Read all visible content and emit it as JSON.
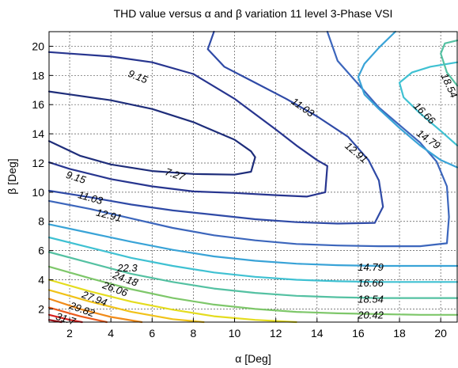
{
  "chart_data": {
    "type": "contour",
    "title": "THD value versus α and β variation 11 level 3-Phase VSI",
    "xlabel": "α [Deg]",
    "ylabel": "β [Deg]",
    "xlim": [
      1,
      20.8
    ],
    "ylim": [
      1.1,
      21
    ],
    "xticks": [
      2,
      4,
      6,
      8,
      10,
      12,
      14,
      16,
      18,
      20
    ],
    "yticks": [
      2,
      4,
      6,
      8,
      10,
      12,
      14,
      16,
      18,
      20
    ],
    "grid": true,
    "levels": [
      {
        "value": 7.27,
        "label": "7.27",
        "color": "#1e2d7a"
      },
      {
        "value": 9.15,
        "label": "9.15",
        "color": "#27358f"
      },
      {
        "value": 11.03,
        "label": "11.03",
        "color": "#2f4aa6"
      },
      {
        "value": 12.91,
        "label": "12.91",
        "color": "#3c66bc"
      },
      {
        "value": 14.79,
        "label": "14.79",
        "color": "#39a3d7"
      },
      {
        "value": 16.66,
        "label": "16.66",
        "color": "#3fc1d2"
      },
      {
        "value": 18.54,
        "label": "18.54",
        "color": "#54c1a2"
      },
      {
        "value": 20.42,
        "label": "20.42",
        "color": "#7ec76a"
      },
      {
        "value": 22.3,
        "label": "22.3",
        "color": "#e4dc1e"
      },
      {
        "value": 24.18,
        "label": "24.18",
        "color": "#f0c219"
      },
      {
        "value": 26.06,
        "label": "26.06",
        "color": "#f08b1a"
      },
      {
        "value": 27.94,
        "label": "27.94",
        "color": "#ea5a1c"
      },
      {
        "value": 29.82,
        "label": "29.82",
        "color": "#d7201f"
      },
      {
        "value": 31.7,
        "label": "31.7",
        "color": "#9c0f17"
      }
    ],
    "contours": [
      {
        "level": "7.27",
        "points": [
          [
            1,
            13.5
          ],
          [
            2.5,
            12.5
          ],
          [
            4,
            11.9
          ],
          [
            6,
            11.45
          ],
          [
            8,
            11.25
          ],
          [
            10,
            11.2
          ],
          [
            10.8,
            11.4
          ],
          [
            11,
            12.4
          ],
          [
            10.8,
            12.8
          ],
          [
            10,
            13.6
          ],
          [
            8,
            14.8
          ],
          [
            6,
            15.7
          ],
          [
            4,
            16.3
          ],
          [
            2,
            16.7
          ],
          [
            1,
            16.9
          ]
        ]
      },
      {
        "level": "9.15",
        "points": [
          [
            1,
            12.05
          ],
          [
            2,
            11.6
          ],
          [
            4,
            10.9
          ],
          [
            6,
            10.4
          ],
          [
            8,
            10.05
          ],
          [
            10,
            9.95
          ],
          [
            12,
            9.8
          ],
          [
            13.5,
            9.7
          ],
          [
            14.4,
            10
          ],
          [
            14.5,
            11.8
          ],
          [
            14,
            12.2
          ],
          [
            13,
            13.2
          ],
          [
            12,
            14.3
          ],
          [
            10,
            16.4
          ],
          [
            8,
            18.1
          ],
          [
            6,
            18.9
          ],
          [
            4,
            19.3
          ],
          [
            2,
            19.5
          ],
          [
            1,
            19.6
          ]
        ]
      },
      {
        "level": "11.03",
        "points": [
          [
            1,
            10.1
          ],
          [
            3,
            9.65
          ],
          [
            5,
            9.15
          ],
          [
            7,
            8.75
          ],
          [
            9,
            8.45
          ],
          [
            11,
            8.15
          ],
          [
            13,
            7.95
          ],
          [
            15,
            7.85
          ],
          [
            16.8,
            7.9
          ],
          [
            17.2,
            9
          ],
          [
            17,
            10.8
          ],
          [
            16.5,
            12.2
          ],
          [
            15.5,
            13.8
          ],
          [
            14,
            15.2
          ],
          [
            12.5,
            16.4
          ],
          [
            11,
            17.5
          ],
          [
            9.5,
            18.6
          ],
          [
            8.7,
            19.8
          ],
          [
            9,
            21
          ]
        ]
      },
      {
        "level": "12.91",
        "points": [
          [
            1,
            9.4
          ],
          [
            3,
            8.85
          ],
          [
            5,
            8.2
          ],
          [
            7,
            7.55
          ],
          [
            9,
            7.05
          ],
          [
            11,
            6.7
          ],
          [
            13,
            6.45
          ],
          [
            15,
            6.35
          ],
          [
            17,
            6.3
          ],
          [
            19,
            6.3
          ],
          [
            20.3,
            6.5
          ],
          [
            20.4,
            8.3
          ],
          [
            20.3,
            10.4
          ],
          [
            19.8,
            12.1
          ],
          [
            19,
            13.4
          ],
          [
            18,
            14.6
          ],
          [
            17,
            15.8
          ],
          [
            16,
            17.4
          ],
          [
            15,
            19
          ],
          [
            14.5,
            21
          ]
        ]
      },
      {
        "level": "14.79",
        "points": [
          [
            1,
            7.8
          ],
          [
            3,
            7.2
          ],
          [
            5,
            6.6
          ],
          [
            7,
            6.05
          ],
          [
            9,
            5.6
          ],
          [
            11,
            5.3
          ],
          [
            13,
            5.1
          ],
          [
            15,
            5.0
          ],
          [
            17,
            4.95
          ],
          [
            19,
            4.95
          ],
          [
            20.8,
            4.95
          ]
        ]
      },
      {
        "level": "14.79",
        "points": [
          [
            20.8,
            11.7
          ],
          [
            20,
            12.2
          ],
          [
            19,
            13.2
          ],
          [
            18,
            14.4
          ],
          [
            17,
            15.7
          ],
          [
            16.3,
            16.7
          ],
          [
            16,
            17.9
          ],
          [
            16.3,
            18.8
          ],
          [
            17,
            19.9
          ],
          [
            17.8,
            21
          ]
        ]
      },
      {
        "level": "16.66",
        "points": [
          [
            1,
            6.9
          ],
          [
            3,
            6.2
          ],
          [
            5,
            5.5
          ],
          [
            7,
            4.95
          ],
          [
            9,
            4.5
          ],
          [
            11,
            4.2
          ],
          [
            13,
            4.0
          ],
          [
            15,
            3.9
          ],
          [
            17,
            3.85
          ],
          [
            19,
            3.85
          ],
          [
            20.8,
            3.85
          ]
        ]
      },
      {
        "level": "16.66",
        "points": [
          [
            20.8,
            13.2
          ],
          [
            20,
            14.2
          ],
          [
            19,
            15.4
          ],
          [
            18.2,
            16.5
          ],
          [
            18,
            17.5
          ],
          [
            18.6,
            18.2
          ],
          [
            19.5,
            18.6
          ],
          [
            20.8,
            18.9
          ]
        ]
      },
      {
        "level": "18.54",
        "points": [
          [
            1,
            5.9
          ],
          [
            3,
            5.15
          ],
          [
            5,
            4.4
          ],
          [
            7,
            3.85
          ],
          [
            9,
            3.4
          ],
          [
            11,
            3.1
          ],
          [
            13,
            2.9
          ],
          [
            15,
            2.8
          ],
          [
            17,
            2.75
          ],
          [
            19,
            2.75
          ],
          [
            20.8,
            2.75
          ]
        ]
      },
      {
        "level": "18.54",
        "points": [
          [
            20.8,
            17.3
          ],
          [
            20.3,
            18.2
          ],
          [
            20,
            19.5
          ],
          [
            20.2,
            20.2
          ],
          [
            20.8,
            20.4
          ]
        ]
      },
      {
        "level": "20.42",
        "points": [
          [
            1,
            4.9
          ],
          [
            3,
            4.1
          ],
          [
            5,
            3.35
          ],
          [
            7,
            2.75
          ],
          [
            9,
            2.3
          ],
          [
            11,
            2.0
          ],
          [
            13,
            1.8
          ],
          [
            15,
            1.7
          ],
          [
            17,
            1.65
          ],
          [
            19,
            1.6
          ],
          [
            20.8,
            1.6
          ]
        ]
      },
      {
        "level": "22.3",
        "points": [
          [
            1,
            4.0
          ],
          [
            3,
            3.2
          ],
          [
            5,
            2.5
          ],
          [
            7,
            1.95
          ],
          [
            9,
            1.5
          ],
          [
            11,
            1.25
          ],
          [
            13,
            1.1
          ]
        ]
      },
      {
        "level": "24.18",
        "points": [
          [
            1,
            3.3
          ],
          [
            3,
            2.5
          ],
          [
            5,
            1.8
          ],
          [
            7,
            1.3
          ],
          [
            8.5,
            1.1
          ]
        ]
      },
      {
        "level": "26.06",
        "points": [
          [
            1,
            2.7
          ],
          [
            2.5,
            2.0
          ],
          [
            4,
            1.45
          ],
          [
            5.5,
            1.1
          ]
        ]
      },
      {
        "level": "27.94",
        "points": [
          [
            1,
            2.1
          ],
          [
            2.5,
            1.5
          ],
          [
            3.8,
            1.1
          ]
        ]
      },
      {
        "level": "29.82",
        "points": [
          [
            1,
            1.6
          ],
          [
            2,
            1.25
          ],
          [
            2.6,
            1.1
          ]
        ]
      },
      {
        "level": "31.7",
        "points": [
          [
            1,
            1.25
          ],
          [
            1.6,
            1.1
          ]
        ]
      }
    ],
    "labels": [
      {
        "text": "9.15",
        "x": 5.3,
        "y": 17.9,
        "angle": 22
      },
      {
        "text": "11.03",
        "x": 13.3,
        "y": 15.8,
        "angle": 35
      },
      {
        "text": "12.91",
        "x": 15.9,
        "y": 12.7,
        "angle": 40
      },
      {
        "text": "16.66",
        "x": 19.2,
        "y": 15.4,
        "angle": 45
      },
      {
        "text": "14.79",
        "x": 19.4,
        "y": 13.6,
        "angle": 35
      },
      {
        "text": "18.54",
        "x": 20.4,
        "y": 17.3,
        "angle": 65
      },
      {
        "text": "7.27",
        "x": 7.1,
        "y": 11.2,
        "angle": 18
      },
      {
        "text": "9.15",
        "x": 2.3,
        "y": 11.0,
        "angle": 18
      },
      {
        "text": "11.03",
        "x": 3.0,
        "y": 9.6,
        "angle": 16
      },
      {
        "text": "12.91",
        "x": 3.9,
        "y": 8.4,
        "angle": 14
      },
      {
        "text": "14.79",
        "x": 16.6,
        "y": 4.85,
        "angle": 0
      },
      {
        "text": "16.66",
        "x": 16.6,
        "y": 3.75,
        "angle": 0
      },
      {
        "text": "18.54",
        "x": 16.6,
        "y": 2.65,
        "angle": 0
      },
      {
        "text": "20.42",
        "x": 16.6,
        "y": 1.55,
        "angle": 0
      },
      {
        "text": "22.3",
        "x": 4.8,
        "y": 4.8,
        "angle": 0
      },
      {
        "text": "24.18",
        "x": 4.7,
        "y": 4.05,
        "angle": 20
      },
      {
        "text": "26.06",
        "x": 4.2,
        "y": 3.35,
        "angle": 20
      },
      {
        "text": "27.94",
        "x": 3.2,
        "y": 2.7,
        "angle": 20
      },
      {
        "text": "29.82",
        "x": 2.6,
        "y": 1.95,
        "angle": 20
      },
      {
        "text": "31.7",
        "x": 1.8,
        "y": 1.3,
        "angle": 18
      }
    ]
  }
}
